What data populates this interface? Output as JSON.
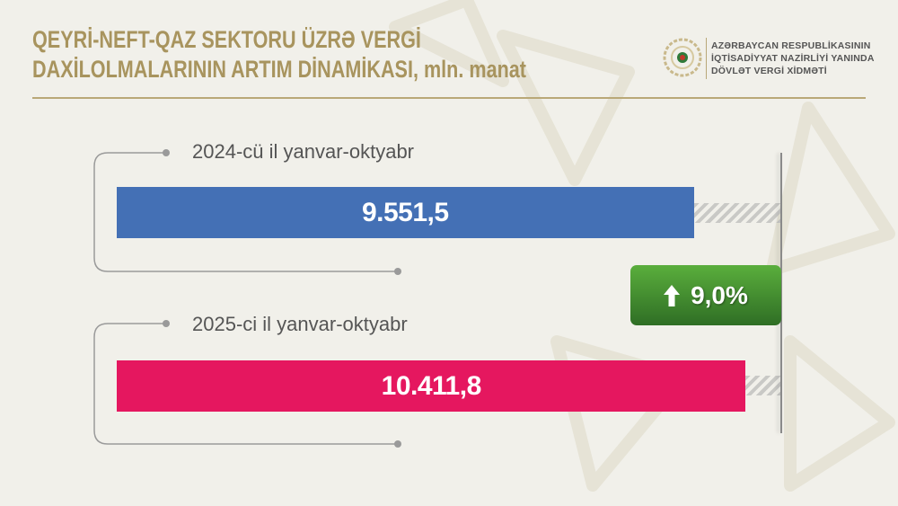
{
  "title_lines": [
    "QEYRİ-NEFT-QAZ SEKTORU ÜZRƏ VERGİ",
    "DAXİLOLMALARININ ARTIM DİNAMİKASI, mln. manat"
  ],
  "organization": {
    "lines": [
      "AZƏRBAYCAN RESPUBLİKASININ",
      "İQTİSADİYYAT NAZİRLİYİ YANINDA",
      "DÖVLƏT VERGİ XİDMƏTİ"
    ],
    "logo_icon": "emblem-icon"
  },
  "chart_data": {
    "type": "bar",
    "orientation": "horizontal",
    "categories": [
      "2024-cü il yanvar-oktyabr",
      "2025-ci il yanvar-oktyabr"
    ],
    "values": [
      9551.5,
      10411.8
    ],
    "data_labels": [
      "9.551,5",
      "10.411,8"
    ],
    "colors": [
      "#4470b5",
      "#e5175f"
    ],
    "xlim": [
      0,
      11000
    ],
    "grid": false,
    "title": "",
    "xlabel": "",
    "ylabel": ""
  },
  "growth_badge": {
    "icon": "arrow-up-icon",
    "text": "9,0%",
    "color": "#3f8a2e"
  }
}
